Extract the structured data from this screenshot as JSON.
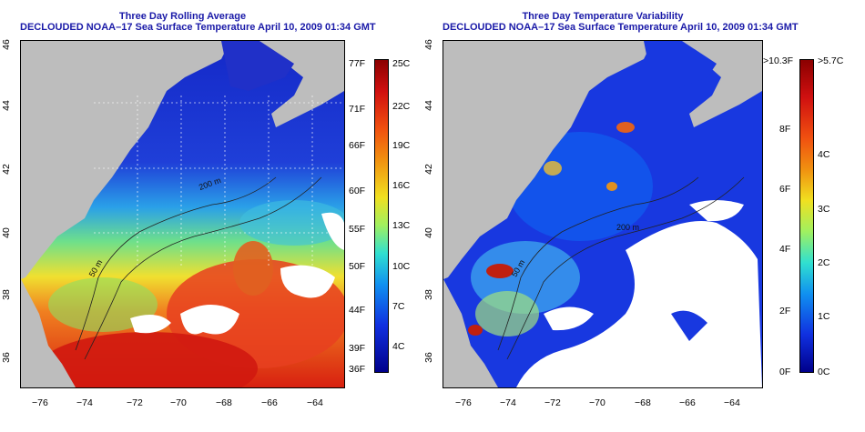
{
  "left": {
    "title": "Three Day Rolling Average",
    "subtitle": "DECLOUDED NOAA–17 Sea Surface Temperature April 10, 2009 01:34 GMT",
    "x_ticks": [
      "−76",
      "−74",
      "−72",
      "−70",
      "−68",
      "−66",
      "−64"
    ],
    "y_ticks": [
      "46",
      "44",
      "42",
      "40",
      "38",
      "36"
    ],
    "contour_labels": [
      "50 m",
      "200 m"
    ],
    "cbar_f": [
      "77F",
      "71F",
      "66F",
      "60F",
      "55F",
      "50F",
      "44F",
      "39F",
      "36F"
    ],
    "cbar_c": [
      "25C",
      "22C",
      "19C",
      "16C",
      "13C",
      "10C",
      "7C",
      "4C"
    ]
  },
  "right": {
    "title": "Three Day Temperature Variability",
    "subtitle": "DECLOUDED NOAA–17 Sea Surface Temperature April 10, 2009 01:34 GMT",
    "x_ticks": [
      "−76",
      "−74",
      "−72",
      "−70",
      "−68",
      "−66",
      "−64"
    ],
    "y_ticks": [
      "46",
      "44",
      "42",
      "40",
      "38",
      "36"
    ],
    "contour_labels": [
      "50 m",
      "200 m"
    ],
    "cbar_f": [
      ">10.3F",
      "8F",
      "6F",
      "4F",
      "2F",
      "0F"
    ],
    "cbar_c": [
      ">5.7C",
      "4C",
      "3C",
      "2C",
      "1C",
      "0C"
    ]
  },
  "colors": {
    "land": "#bdbdbd",
    "title": "#1a1aa8",
    "cbar_top": "#8b0000",
    "cbar_bottom": "#00008b"
  }
}
